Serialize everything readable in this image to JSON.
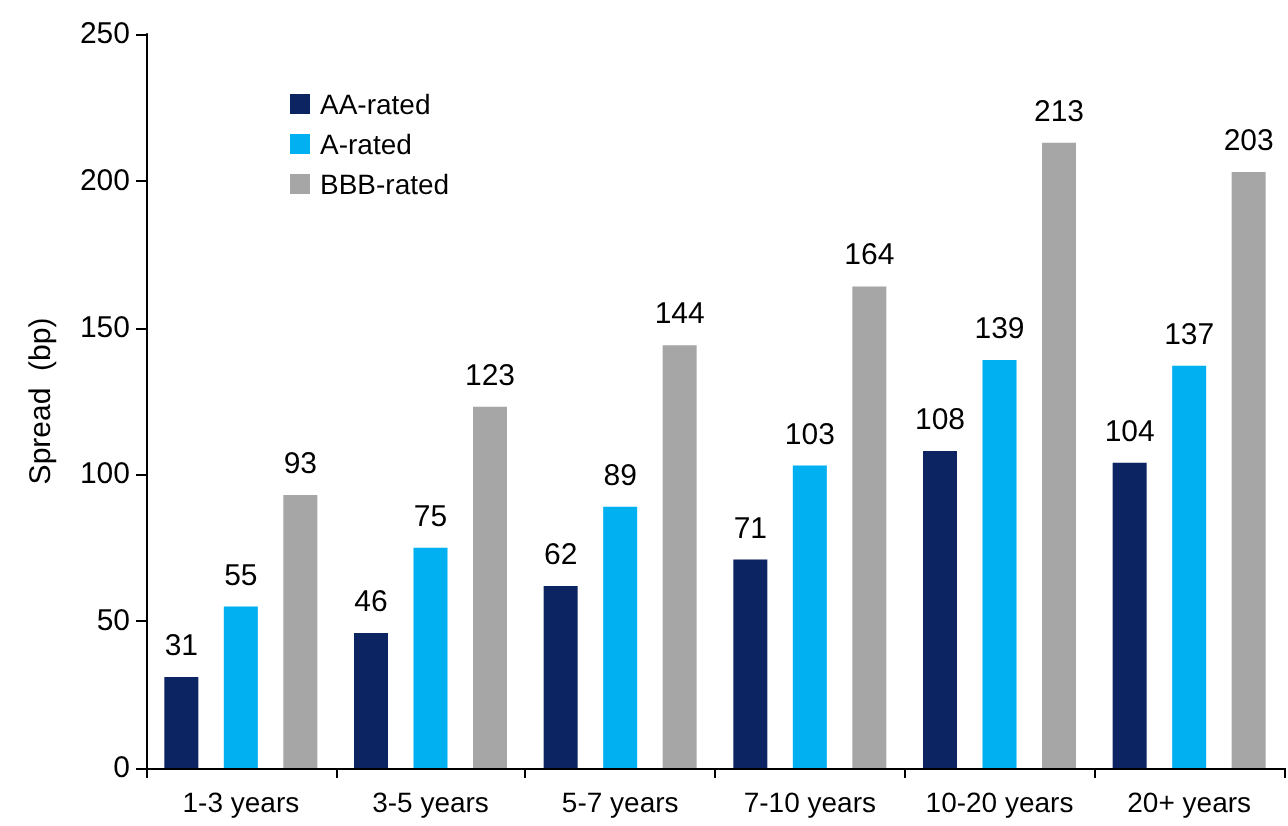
{
  "chart_data": {
    "type": "bar",
    "ylabel": "Spread  (bp)",
    "categories": [
      "1-3 years",
      "3-5 years",
      "5-7 years",
      "7-10 years",
      "10-20 years",
      "20+ years"
    ],
    "series": [
      {
        "name": "AA-rated",
        "color": "#0c2461",
        "values": [
          31,
          46,
          62,
          71,
          108,
          104
        ]
      },
      {
        "name": "A-rated",
        "color": "#00b0f0",
        "values": [
          55,
          75,
          89,
          103,
          139,
          137
        ]
      },
      {
        "name": "BBB-rated",
        "color": "#a6a6a6",
        "values": [
          93,
          123,
          144,
          164,
          213,
          203
        ]
      }
    ],
    "ylim": [
      0,
      250
    ],
    "yticks": [
      0,
      50,
      100,
      150,
      200,
      250
    ],
    "data_labels": true,
    "grid": false,
    "legend": "top left"
  }
}
